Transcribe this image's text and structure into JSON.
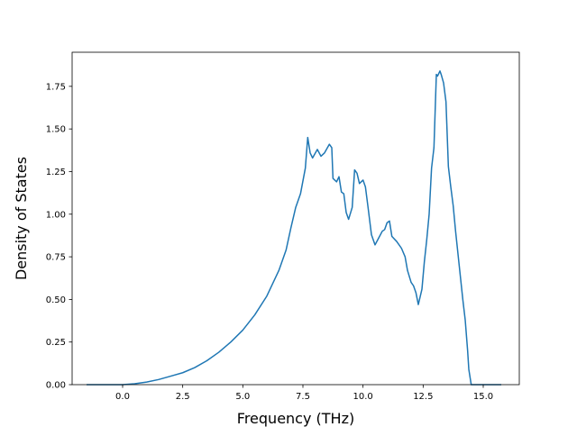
{
  "chart_data": {
    "type": "line",
    "title": "",
    "xlabel": "Frequency (THz)",
    "ylabel": "Density of States",
    "xlim": [
      -2.1,
      16.5
    ],
    "ylim": [
      0,
      1.95
    ],
    "xticks": [
      0.0,
      2.5,
      5.0,
      7.5,
      10.0,
      12.5,
      15.0
    ],
    "xtick_labels": [
      "0.0",
      "2.5",
      "5.0",
      "7.5",
      "10.0",
      "12.5",
      "15.0"
    ],
    "yticks": [
      0.0,
      0.25,
      0.5,
      0.75,
      1.0,
      1.25,
      1.5,
      1.75
    ],
    "ytick_labels": [
      "0.00",
      "0.25",
      "0.50",
      "0.75",
      "1.00",
      "1.25",
      "1.50",
      "1.75"
    ],
    "grid": false,
    "series": [
      {
        "color": "#1f77b4",
        "x": [
          -1.5,
          0.0,
          0.5,
          1.0,
          1.5,
          2.0,
          2.5,
          3.0,
          3.5,
          4.0,
          4.5,
          5.0,
          5.5,
          6.0,
          6.5,
          6.8,
          7.0,
          7.2,
          7.4,
          7.6,
          7.7,
          7.8,
          7.9,
          8.1,
          8.25,
          8.4,
          8.6,
          8.7,
          8.75,
          8.9,
          9.0,
          9.1,
          9.2,
          9.3,
          9.4,
          9.55,
          9.65,
          9.75,
          9.85,
          10.0,
          10.1,
          10.2,
          10.35,
          10.5,
          10.65,
          10.8,
          10.9,
          11.0,
          11.1,
          11.2,
          11.4,
          11.6,
          11.75,
          11.85,
          12.0,
          12.1,
          12.2,
          12.3,
          12.45,
          12.55,
          12.65,
          12.75,
          12.85,
          12.95,
          13.05,
          13.1,
          13.2,
          13.25,
          13.35,
          13.45,
          13.55,
          13.65,
          13.75,
          13.85,
          14.0,
          14.15,
          14.25,
          14.35,
          14.4,
          14.5,
          15.0,
          15.75
        ],
        "y": [
          0.0,
          0.0,
          0.005,
          0.015,
          0.03,
          0.05,
          0.07,
          0.1,
          0.14,
          0.19,
          0.25,
          0.32,
          0.41,
          0.52,
          0.67,
          0.79,
          0.92,
          1.04,
          1.12,
          1.27,
          1.45,
          1.36,
          1.33,
          1.38,
          1.34,
          1.36,
          1.41,
          1.39,
          1.21,
          1.19,
          1.22,
          1.13,
          1.12,
          1.01,
          0.97,
          1.04,
          1.26,
          1.24,
          1.18,
          1.2,
          1.16,
          1.05,
          0.88,
          0.82,
          0.86,
          0.9,
          0.91,
          0.95,
          0.96,
          0.87,
          0.84,
          0.8,
          0.75,
          0.67,
          0.6,
          0.58,
          0.54,
          0.47,
          0.56,
          0.72,
          0.85,
          1.0,
          1.27,
          1.39,
          1.82,
          1.81,
          1.84,
          1.82,
          1.77,
          1.66,
          1.28,
          1.16,
          1.05,
          0.9,
          0.7,
          0.5,
          0.38,
          0.2,
          0.09,
          0.0,
          0.0,
          0.0
        ]
      }
    ]
  }
}
